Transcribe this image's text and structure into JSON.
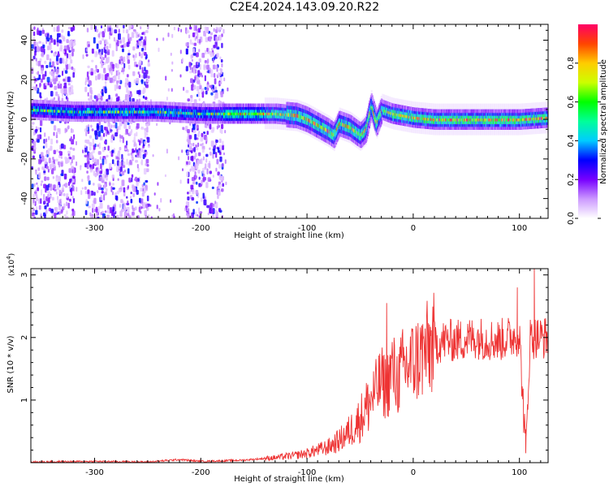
{
  "figure": {
    "title": "C2E4.2024.143.09.20.R22"
  },
  "chart_data": [
    {
      "type": "heatmap",
      "title": "",
      "xlabel": "Height of straight line (km)",
      "ylabel": "Frequency (Hz)",
      "xlim": [
        -360,
        127
      ],
      "ylim": [
        -50,
        48
      ],
      "xticks": [
        -300,
        -200,
        -100,
        0,
        100
      ],
      "yticks": [
        -40,
        -20,
        0,
        20,
        40
      ],
      "colorbar": {
        "label": "Normalized spectral amplitude",
        "range": [
          0.0,
          1.0
        ],
        "ticks": [
          0.0,
          0.2,
          0.4,
          0.6,
          0.8
        ],
        "colormap": [
          "#ffffff",
          "#cc99ff",
          "#7700ff",
          "#0000ff",
          "#00ccff",
          "#00ff99",
          "#00ff00",
          "#ccff00",
          "#ffcc00",
          "#ff4400",
          "#ff0066"
        ]
      },
      "ridge": {
        "x": [
          -360,
          -320,
          -280,
          -240,
          -200,
          -160,
          -130,
          -110,
          -100,
          -90,
          -80,
          -75,
          -70,
          -60,
          -50,
          -45,
          -40,
          -35,
          -30,
          -20,
          0,
          20,
          50,
          80,
          100,
          127
        ],
        "freq": [
          5,
          4,
          4,
          4,
          3,
          3,
          3,
          2,
          0,
          -3,
          -6,
          -8,
          -2,
          -4,
          -8,
          -5,
          7,
          -2,
          5,
          3,
          1,
          0,
          0,
          0,
          0,
          1
        ]
      },
      "background_noise_bands": [
        [
          -360,
          -320
        ],
        [
          -310,
          -250
        ],
        [
          -215,
          -180
        ]
      ]
    },
    {
      "type": "line",
      "title": "",
      "xlabel": "Height of straight line (km)",
      "ylabel": "SNR (10 * v/v)",
      "y_multiplier": "(x10^4)",
      "xlim": [
        -360,
        127
      ],
      "ylim": [
        0,
        3.1
      ],
      "xticks": [
        -300,
        -200,
        -100,
        0,
        100
      ],
      "yticks": [
        1,
        2,
        3
      ],
      "line_color": "#ee3333",
      "series": [
        {
          "x": [
            -360,
            -300,
            -250,
            -220,
            -200,
            -160,
            -130,
            -110,
            -100,
            -90,
            -80,
            -70,
            -60,
            -50,
            -40,
            -30,
            -25,
            -20,
            -15,
            -10,
            0,
            10,
            20,
            30,
            40,
            60,
            80,
            100,
            106,
            110,
            127
          ],
          "values": [
            0.01,
            0.02,
            0.01,
            0.05,
            0.02,
            0.04,
            0.08,
            0.12,
            0.15,
            0.2,
            0.25,
            0.35,
            0.5,
            0.7,
            1.0,
            1.3,
            1.2,
            1.5,
            1.3,
            1.5,
            1.6,
            1.75,
            1.9,
            1.95,
            1.95,
            2.0,
            1.95,
            2.05,
            0.15,
            2.0,
            2.0
          ]
        }
      ],
      "annotations": {
        "spikes": [
          {
            "x": -25,
            "value": 2.55
          },
          {
            "x": 98,
            "value": 2.8
          },
          {
            "x": 114,
            "value": 3.1
          },
          {
            "x": 106,
            "value": 0.15
          }
        ]
      }
    }
  ]
}
